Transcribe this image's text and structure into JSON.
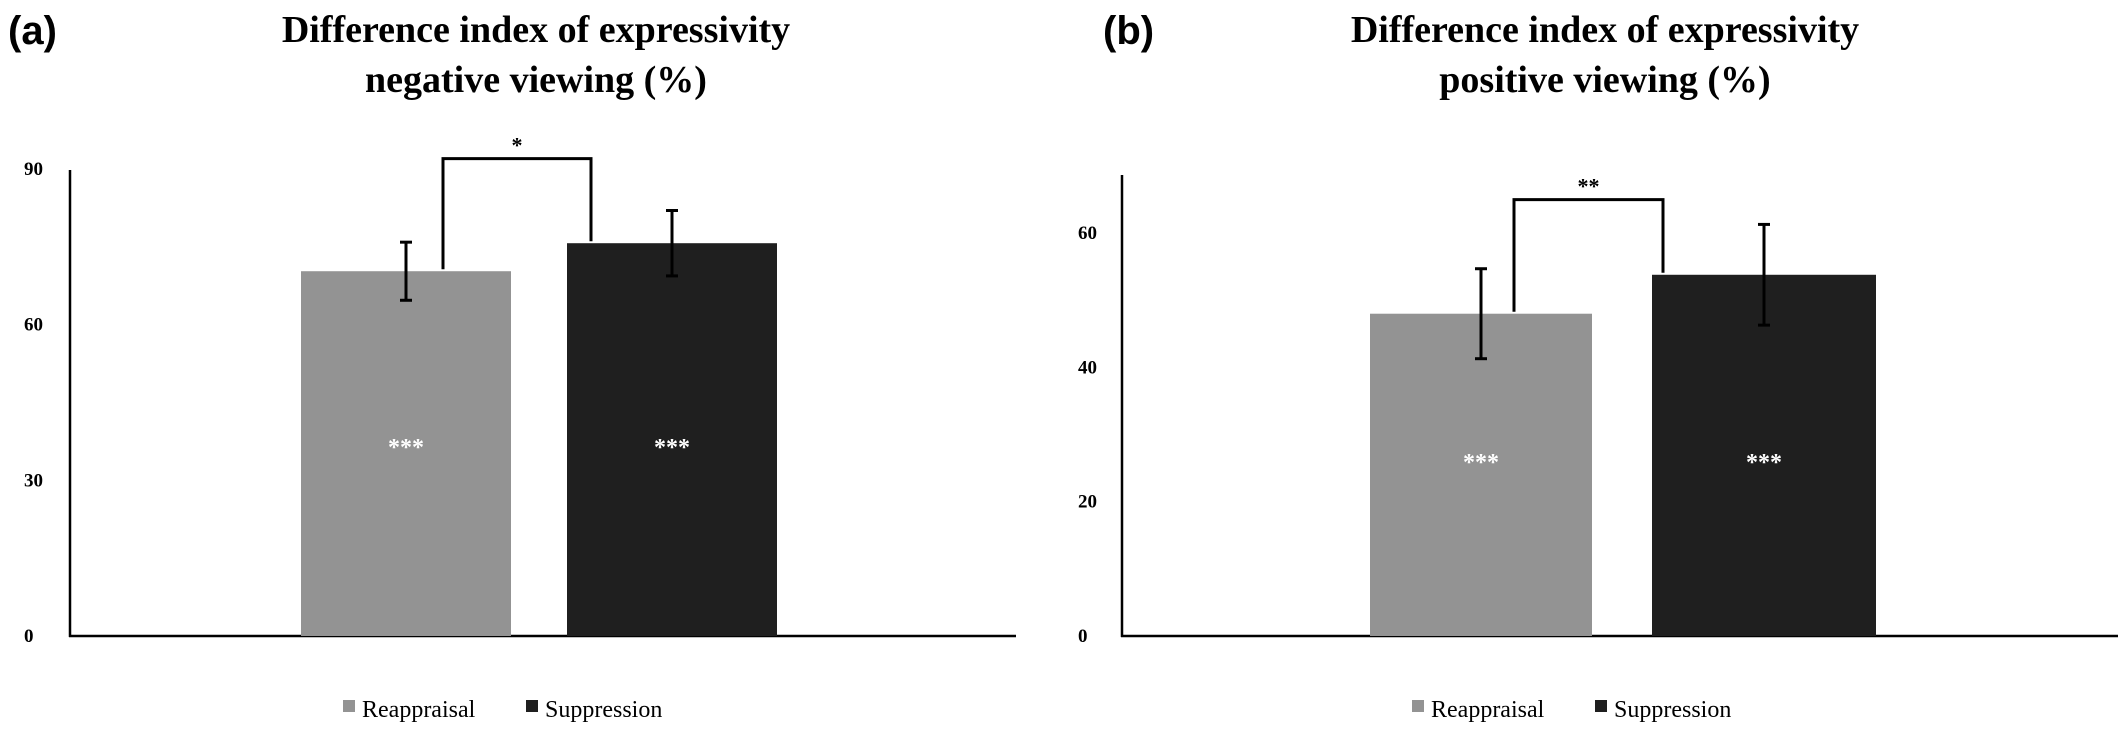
{
  "colors": {
    "reappraisal": "#939393",
    "suppression": "#1f1f1f"
  },
  "legend": [
    "Reappraisal",
    "Suppression"
  ],
  "chart_data": [
    {
      "panel": "(a)",
      "type": "bar",
      "title_lines": [
        "Difference index of expressivity",
        "negative viewing (%)"
      ],
      "categories": [
        "Reappraisal",
        "Suppression"
      ],
      "values": [
        70.3,
        75.7
      ],
      "errors": [
        5.6,
        6.3
      ],
      "inner_labels": [
        "***",
        "***"
      ],
      "ylim": [
        0,
        90
      ],
      "yticks": [
        0,
        30,
        60,
        90
      ],
      "significance": {
        "label": "*",
        "top": 92
      }
    },
    {
      "panel": "(b)",
      "type": "bar",
      "title_lines": [
        "Difference index of expressivity",
        "positive viewing (%)"
      ],
      "categories": [
        "Reappraisal",
        "Suppression"
      ],
      "values": [
        48.0,
        53.8
      ],
      "errors": [
        6.7,
        7.5
      ],
      "inner_labels": [
        "***",
        "***"
      ],
      "ylim": [
        0,
        70
      ],
      "yticks": [
        0,
        20,
        40,
        60
      ],
      "significance": {
        "label": "**",
        "top": 65
      }
    }
  ]
}
